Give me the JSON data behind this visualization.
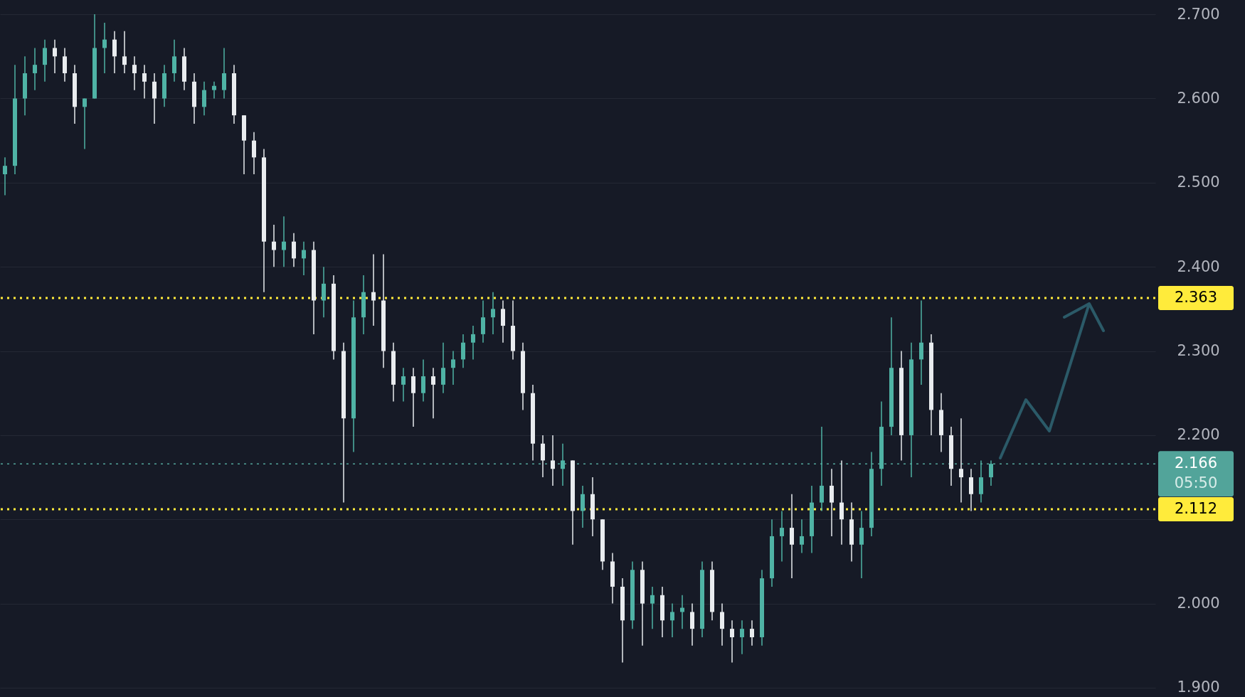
{
  "chart_data": {
    "type": "candlestick",
    "categories": [
      null,
      null,
      null,
      null,
      null,
      null,
      null,
      null,
      null,
      null,
      null,
      null,
      null,
      null,
      null,
      null,
      null,
      null,
      null,
      null,
      null,
      null,
      null,
      null,
      null,
      null,
      null,
      null,
      null,
      null,
      null,
      null,
      null,
      null,
      null,
      null,
      null,
      null,
      null,
      null,
      null,
      null,
      null,
      null,
      null,
      null,
      null,
      null,
      null,
      null,
      null,
      null,
      null,
      null,
      null,
      null,
      null,
      null,
      null,
      null,
      null,
      null,
      null,
      null,
      null,
      null,
      null,
      null,
      null,
      null,
      null,
      null,
      null,
      null,
      null,
      null,
      null,
      null,
      null,
      null,
      null,
      null,
      null,
      null,
      null,
      null,
      null,
      null,
      null,
      null,
      null,
      null,
      null,
      null,
      null,
      null,
      null,
      null,
      null,
      null,
      null,
      null,
      null,
      null,
      null,
      null,
      null,
      null,
      null,
      null,
      null,
      null,
      null,
      null,
      null,
      null
    ],
    "ohlc": [
      [
        2.51,
        2.53,
        2.485,
        2.52
      ],
      [
        2.52,
        2.64,
        2.51,
        2.6
      ],
      [
        2.6,
        2.65,
        2.58,
        2.63
      ],
      [
        2.63,
        2.66,
        2.61,
        2.64
      ],
      [
        2.64,
        2.67,
        2.62,
        2.66
      ],
      [
        2.66,
        2.67,
        2.63,
        2.65
      ],
      [
        2.65,
        2.66,
        2.62,
        2.63
      ],
      [
        2.63,
        2.64,
        2.57,
        2.59
      ],
      [
        2.59,
        2.6,
        2.54,
        2.6
      ],
      [
        2.6,
        2.7,
        2.6,
        2.66
      ],
      [
        2.66,
        2.69,
        2.63,
        2.67
      ],
      [
        2.67,
        2.68,
        2.63,
        2.65
      ],
      [
        2.65,
        2.68,
        2.63,
        2.64
      ],
      [
        2.64,
        2.65,
        2.61,
        2.63
      ],
      [
        2.63,
        2.64,
        2.6,
        2.62
      ],
      [
        2.62,
        2.63,
        2.57,
        2.6
      ],
      [
        2.6,
        2.64,
        2.59,
        2.63
      ],
      [
        2.63,
        2.67,
        2.62,
        2.65
      ],
      [
        2.65,
        2.66,
        2.61,
        2.62
      ],
      [
        2.62,
        2.63,
        2.57,
        2.59
      ],
      [
        2.59,
        2.62,
        2.58,
        2.61
      ],
      [
        2.61,
        2.62,
        2.6,
        2.615
      ],
      [
        2.61,
        2.66,
        2.6,
        2.63
      ],
      [
        2.63,
        2.64,
        2.57,
        2.58
      ],
      [
        2.58,
        2.58,
        2.51,
        2.55
      ],
      [
        2.55,
        2.56,
        2.51,
        2.53
      ],
      [
        2.53,
        2.54,
        2.37,
        2.43
      ],
      [
        2.43,
        2.45,
        2.4,
        2.42
      ],
      [
        2.42,
        2.46,
        2.4,
        2.43
      ],
      [
        2.43,
        2.44,
        2.4,
        2.41
      ],
      [
        2.41,
        2.43,
        2.39,
        2.42
      ],
      [
        2.42,
        2.43,
        2.32,
        2.36
      ],
      [
        2.36,
        2.4,
        2.34,
        2.38
      ],
      [
        2.38,
        2.39,
        2.29,
        2.3
      ],
      [
        2.3,
        2.31,
        2.12,
        2.22
      ],
      [
        2.22,
        2.36,
        2.18,
        2.34
      ],
      [
        2.34,
        2.39,
        2.32,
        2.37
      ],
      [
        2.37,
        2.415,
        2.33,
        2.36
      ],
      [
        2.36,
        2.415,
        2.28,
        2.3
      ],
      [
        2.3,
        2.31,
        2.24,
        2.26
      ],
      [
        2.26,
        2.28,
        2.24,
        2.27
      ],
      [
        2.27,
        2.28,
        2.21,
        2.25
      ],
      [
        2.25,
        2.29,
        2.24,
        2.27
      ],
      [
        2.27,
        2.28,
        2.22,
        2.26
      ],
      [
        2.26,
        2.31,
        2.25,
        2.28
      ],
      [
        2.28,
        2.3,
        2.26,
        2.29
      ],
      [
        2.29,
        2.32,
        2.28,
        2.31
      ],
      [
        2.31,
        2.33,
        2.29,
        2.32
      ],
      [
        2.32,
        2.36,
        2.31,
        2.34
      ],
      [
        2.34,
        2.37,
        2.32,
        2.35
      ],
      [
        2.35,
        2.36,
        2.31,
        2.33
      ],
      [
        2.33,
        2.36,
        2.29,
        2.3
      ],
      [
        2.3,
        2.31,
        2.23,
        2.25
      ],
      [
        2.25,
        2.26,
        2.17,
        2.19
      ],
      [
        2.19,
        2.2,
        2.15,
        2.17
      ],
      [
        2.17,
        2.2,
        2.14,
        2.16
      ],
      [
        2.16,
        2.19,
        2.14,
        2.17
      ],
      [
        2.17,
        2.17,
        2.07,
        2.11
      ],
      [
        2.11,
        2.14,
        2.09,
        2.13
      ],
      [
        2.13,
        2.15,
        2.08,
        2.1
      ],
      [
        2.1,
        2.1,
        2.04,
        2.05
      ],
      [
        2.05,
        2.06,
        2.0,
        2.02
      ],
      [
        2.02,
        2.03,
        1.93,
        1.98
      ],
      [
        1.98,
        2.05,
        1.97,
        2.04
      ],
      [
        2.04,
        2.05,
        1.95,
        2.0
      ],
      [
        2.0,
        2.02,
        1.97,
        2.01
      ],
      [
        2.01,
        2.02,
        1.96,
        1.98
      ],
      [
        1.98,
        2.0,
        1.96,
        1.99
      ],
      [
        1.99,
        2.01,
        1.97,
        1.995
      ],
      [
        1.99,
        2.0,
        1.95,
        1.97
      ],
      [
        1.97,
        2.05,
        1.96,
        2.04
      ],
      [
        2.04,
        2.05,
        1.98,
        1.99
      ],
      [
        1.99,
        2.0,
        1.95,
        1.97
      ],
      [
        1.97,
        1.98,
        1.93,
        1.96
      ],
      [
        1.96,
        1.98,
        1.94,
        1.97
      ],
      [
        1.97,
        1.98,
        1.95,
        1.96
      ],
      [
        1.96,
        2.04,
        1.95,
        2.03
      ],
      [
        2.03,
        2.1,
        2.02,
        2.08
      ],
      [
        2.08,
        2.11,
        2.05,
        2.09
      ],
      [
        2.09,
        2.13,
        2.03,
        2.07
      ],
      [
        2.07,
        2.1,
        2.06,
        2.08
      ],
      [
        2.08,
        2.14,
        2.06,
        2.12
      ],
      [
        2.12,
        2.21,
        2.11,
        2.14
      ],
      [
        2.14,
        2.16,
        2.08,
        2.12
      ],
      [
        2.12,
        2.17,
        2.07,
        2.1
      ],
      [
        2.1,
        2.12,
        2.05,
        2.07
      ],
      [
        2.07,
        2.11,
        2.03,
        2.09
      ],
      [
        2.09,
        2.18,
        2.08,
        2.16
      ],
      [
        2.16,
        2.24,
        2.14,
        2.21
      ],
      [
        2.21,
        2.34,
        2.2,
        2.28
      ],
      [
        2.28,
        2.3,
        2.17,
        2.2
      ],
      [
        2.2,
        2.31,
        2.15,
        2.29
      ],
      [
        2.29,
        2.36,
        2.26,
        2.31
      ],
      [
        2.31,
        2.32,
        2.2,
        2.23
      ],
      [
        2.23,
        2.25,
        2.18,
        2.2
      ],
      [
        2.2,
        2.21,
        2.14,
        2.16
      ],
      [
        2.16,
        2.22,
        2.12,
        2.15
      ],
      [
        2.15,
        2.16,
        2.11,
        2.13
      ],
      [
        2.13,
        2.17,
        2.12,
        2.15
      ],
      [
        2.15,
        2.17,
        2.14,
        2.166
      ],
      null,
      null,
      null,
      null,
      null,
      null,
      null,
      null,
      null,
      null,
      null,
      null,
      null,
      null,
      null,
      null
    ],
    "ylim": [
      1.889,
      2.717
    ],
    "yticks": [
      {
        "value": 1.9,
        "label": "1.900"
      },
      {
        "value": 2.0,
        "label": "2.000"
      },
      {
        "value": 2.1,
        "label": null
      },
      {
        "value": 2.2,
        "label": "2.200"
      },
      {
        "value": 2.3,
        "label": "2.300"
      },
      {
        "value": 2.4,
        "label": "2.400"
      },
      {
        "value": 2.5,
        "label": "2.500"
      },
      {
        "value": 2.6,
        "label": "2.600"
      },
      {
        "value": 2.7,
        "label": "2.700"
      }
    ],
    "grid": "y",
    "tick_labels": "y",
    "ref_lines": [
      {
        "axis": "y",
        "value": 2.363,
        "label": "2.363",
        "color": "#ffeb3b",
        "line_style": "dotted"
      },
      {
        "axis": "y",
        "value": 2.112,
        "label": "2.112",
        "color": "#ffeb3b",
        "line_style": "dotted"
      },
      {
        "axis": "y",
        "value": 2.166,
        "label": "2.166",
        "color": "#52a49a",
        "line_style": "dotted"
      }
    ],
    "annotations": [
      "05:50"
    ]
  }
}
